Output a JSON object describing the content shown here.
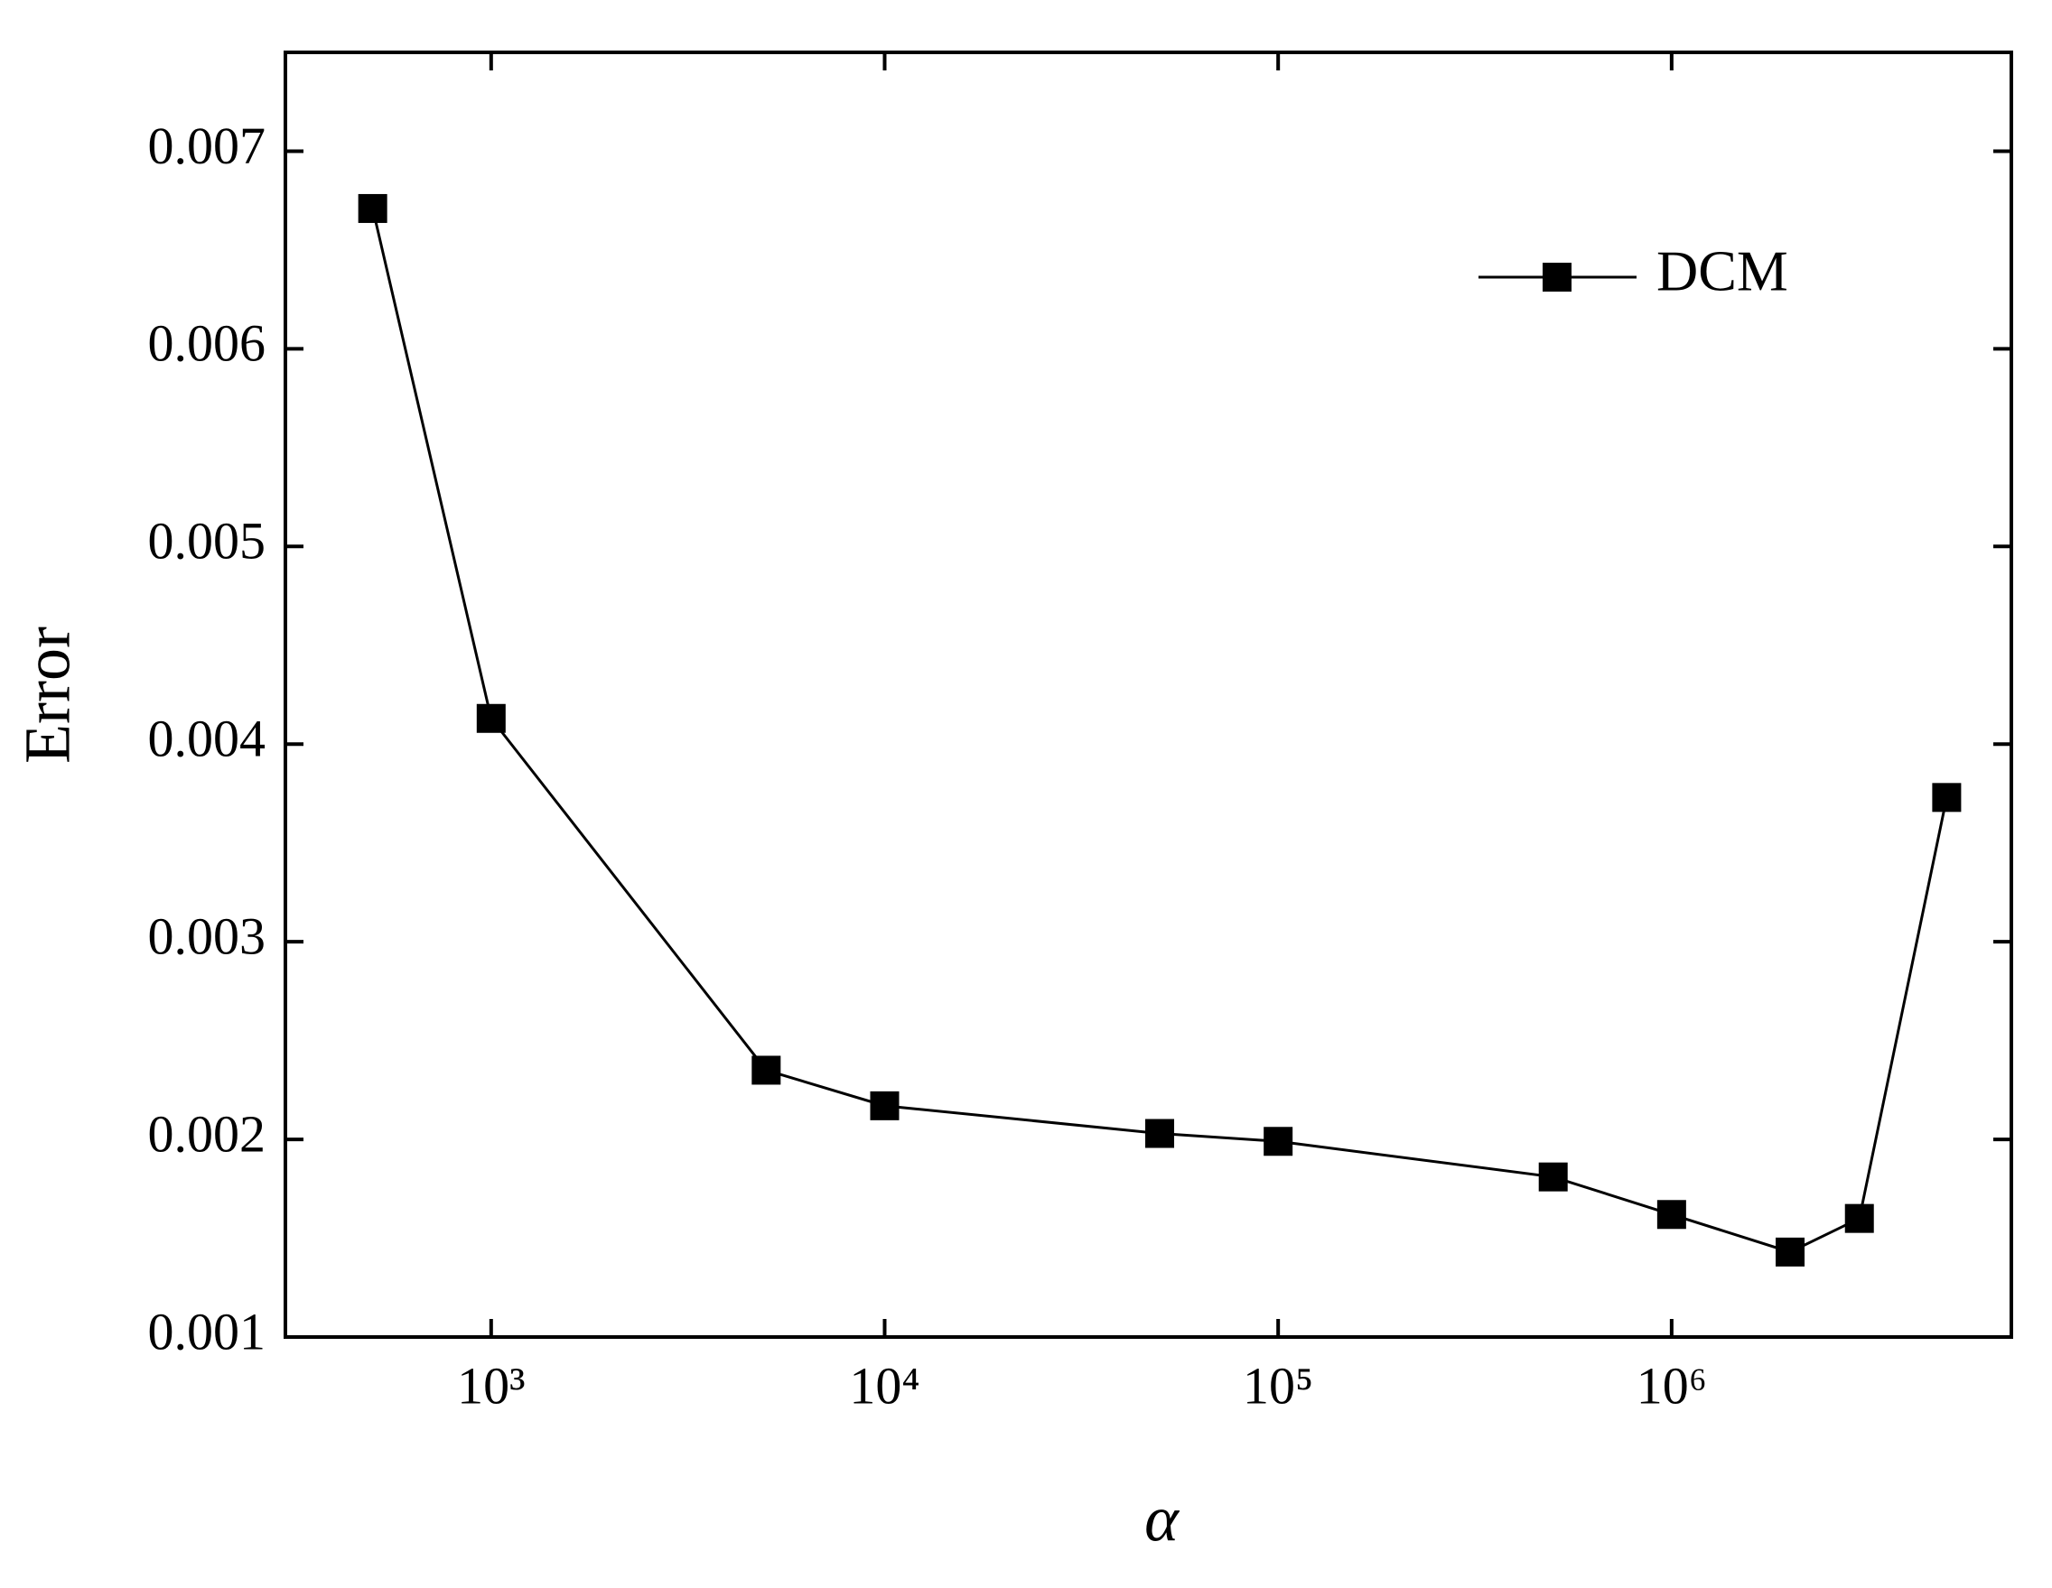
{
  "chart_data": {
    "type": "line",
    "x_label": "α",
    "y_label": "Error",
    "x": [
      500,
      1000,
      5000,
      10000,
      50000,
      100000,
      500000,
      1000000,
      2000000,
      3000000,
      5000000
    ],
    "series": [
      {
        "name": "DCM",
        "color": "#000000",
        "values": [
          0.00671,
          0.00413,
          0.00235,
          0.00217,
          0.00203,
          0.00199,
          0.00181,
          0.00162,
          0.00143,
          0.0016,
          0.00373
        ]
      }
    ],
    "xlog": true,
    "xlim": [
      300,
      7300000
    ],
    "xticks": [
      {
        "value": 1000,
        "label": "10³"
      },
      {
        "value": 10000,
        "label": "10⁴"
      },
      {
        "value": 100000,
        "label": "10⁵"
      },
      {
        "value": 1000000,
        "label": "10⁶"
      }
    ],
    "ylim": [
      0.001,
      0.0075
    ],
    "yticks": [
      0.001,
      0.002,
      0.003,
      0.004,
      0.005,
      0.006,
      0.007
    ],
    "grid": false,
    "legend": "upper-right"
  }
}
